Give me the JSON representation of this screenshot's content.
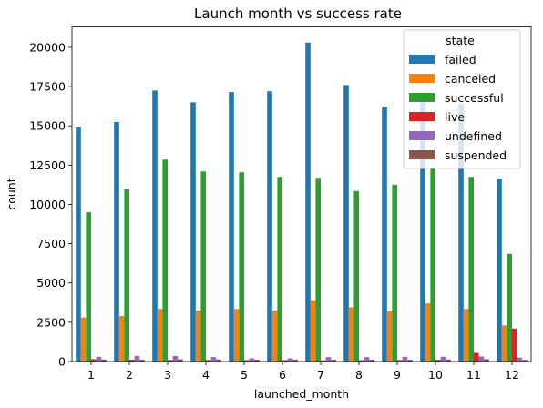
{
  "chart_data": {
    "type": "bar",
    "title": "Launch month vs success rate",
    "xlabel": "launched_month",
    "ylabel": "count",
    "ylim": [
      0,
      21300
    ],
    "yticks": [
      0,
      2500,
      5000,
      7500,
      10000,
      12500,
      15000,
      17500,
      20000
    ],
    "categories": [
      "1",
      "2",
      "3",
      "4",
      "5",
      "6",
      "7",
      "8",
      "9",
      "10",
      "11",
      "12"
    ],
    "legend": {
      "title": "state",
      "placement": "upper right"
    },
    "series": [
      {
        "name": "failed",
        "color": "#1f77b4",
        "values": [
          14950,
          15250,
          17250,
          16500,
          17150,
          17200,
          20300,
          17600,
          16200,
          16750,
          16400,
          11650
        ]
      },
      {
        "name": "canceled",
        "color": "#ff7f0e",
        "values": [
          2800,
          2900,
          3350,
          3250,
          3350,
          3250,
          3900,
          3450,
          3200,
          3700,
          3350,
          2300
        ]
      },
      {
        "name": "successful",
        "color": "#2ca02c",
        "values": [
          9500,
          11000,
          12850,
          12100,
          12050,
          11750,
          11700,
          10850,
          11250,
          12350,
          11750,
          6850
        ]
      },
      {
        "name": "live",
        "color": "#d62728",
        "values": [
          150,
          120,
          100,
          100,
          90,
          90,
          80,
          90,
          100,
          110,
          550,
          2100
        ]
      },
      {
        "name": "undefined",
        "color": "#9467bd",
        "values": [
          300,
          350,
          350,
          280,
          200,
          200,
          280,
          280,
          300,
          300,
          320,
          250
        ]
      },
      {
        "name": "suspended",
        "color": "#8c564b",
        "values": [
          130,
          120,
          140,
          130,
          120,
          120,
          120,
          120,
          110,
          130,
          150,
          100
        ]
      }
    ]
  }
}
